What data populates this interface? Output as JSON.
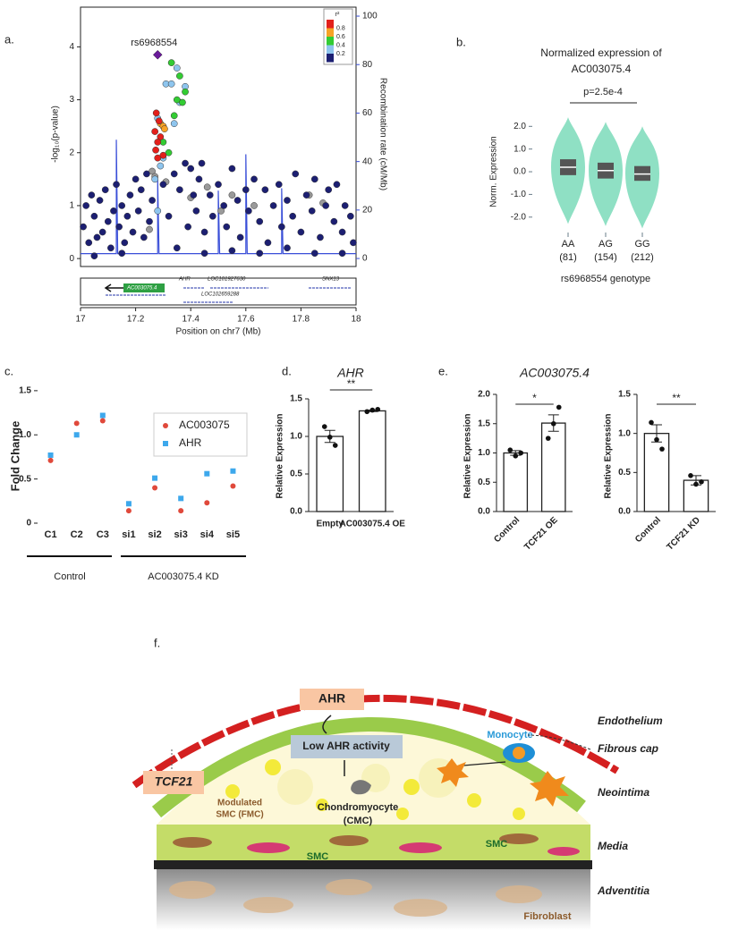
{
  "chart_data": [
    {
      "type": "scatter",
      "panel": "a.",
      "ylabel": "-log₁₀(p-value)",
      "y2label": "Recombination rate (cM/Mb)",
      "xlabel": "Position on chr7 (Mb)",
      "annotation": "rs6968554",
      "xlim": [
        17,
        18
      ],
      "xticks": [
        17,
        17.2,
        17.4,
        17.6,
        17.8,
        18
      ],
      "ylim": [
        -0.15,
        4.75
      ],
      "yticks": [
        0,
        1,
        2,
        3,
        4
      ],
      "y2lim": [
        -3.3,
        103.7
      ],
      "y2ticks": [
        0,
        20,
        40,
        60,
        80,
        100
      ],
      "y2color": "#3a4fd8",
      "legend": {
        "title": "r²",
        "labels": [
          0.8,
          0.6,
          0.4,
          0.2
        ]
      },
      "genes": [
        "AC003075.4",
        "AHR",
        "LOC101927630",
        "LOC102659288",
        "SNX13"
      ],
      "series": [
        {
          "color": "#6a1b9a",
          "marker": "diamond",
          "x": [
            17.28
          ],
          "y": [
            3.85
          ]
        },
        {
          "color": "#e3201b",
          "x": [
            17.275,
            17.285,
            17.27,
            17.29,
            17.28,
            17.273,
            17.3,
            17.28
          ],
          "y": [
            2.75,
            2.6,
            2.4,
            2.3,
            2.2,
            2.05,
            1.95,
            1.9
          ]
        },
        {
          "color": "#f7a326",
          "x": [
            17.29,
            17.3,
            17.305
          ],
          "y": [
            2.55,
            2.5,
            2.45
          ]
        },
        {
          "color": "#33cc33",
          "x": [
            17.33,
            17.36,
            17.38,
            17.35,
            17.37,
            17.34,
            17.3,
            17.32
          ],
          "y": [
            3.7,
            3.45,
            3.15,
            3.0,
            2.95,
            2.7,
            2.2,
            2.0
          ]
        },
        {
          "color": "#8ec5ee",
          "x": [
            17.35,
            17.38,
            17.31,
            17.28,
            17.3,
            17.33,
            17.29,
            17.27,
            17.3,
            17.36,
            17.34,
            17.28
          ],
          "y": [
            3.6,
            3.25,
            3.3,
            2.65,
            2.5,
            3.3,
            1.75,
            1.5,
            1.9,
            2.95,
            2.55,
            0.9
          ]
        },
        {
          "color": "#1c1f72",
          "x": [
            17.01,
            17.02,
            17.03,
            17.04,
            17.05,
            17.06,
            17.07,
            17.08,
            17.09,
            17.1,
            17.11,
            17.12,
            17.13,
            17.14,
            17.15,
            17.16,
            17.17,
            17.18,
            17.19,
            17.2,
            17.21,
            17.22,
            17.23,
            17.24,
            17.25,
            17.26,
            17.3,
            17.32,
            17.34,
            17.36,
            17.38,
            17.39,
            17.4,
            17.41,
            17.42,
            17.43,
            17.44,
            17.45,
            17.47,
            17.48,
            17.5,
            17.52,
            17.53,
            17.55,
            17.57,
            17.58,
            17.6,
            17.61,
            17.63,
            17.65,
            17.67,
            17.68,
            17.7,
            17.72,
            17.73,
            17.75,
            17.77,
            17.78,
            17.8,
            17.82,
            17.84,
            17.85,
            17.87,
            17.89,
            17.9,
            17.92,
            17.93,
            17.95,
            17.96,
            17.98,
            17.99,
            17.35,
            17.45,
            17.55,
            17.65,
            17.75,
            17.85,
            17.15,
            17.05,
            17.95
          ],
          "y": [
            0.6,
            1.0,
            0.3,
            1.2,
            0.8,
            0.4,
            1.1,
            0.5,
            1.3,
            0.7,
            0.2,
            0.9,
            1.4,
            0.6,
            1.0,
            0.3,
            0.8,
            1.2,
            0.5,
            1.5,
            0.9,
            1.3,
            0.4,
            1.6,
            0.7,
            1.1,
            1.4,
            0.8,
            1.6,
            1.3,
            1.8,
            0.6,
            1.7,
            1.2,
            0.9,
            1.5,
            1.8,
            0.5,
            1.2,
            0.8,
            1.4,
            1.0,
            0.6,
            1.7,
            1.1,
            0.4,
            1.3,
            0.9,
            1.5,
            0.7,
            1.3,
            0.3,
            1.0,
            1.4,
            0.6,
            1.1,
            0.8,
            1.6,
            0.5,
            1.2,
            0.9,
            1.5,
            0.4,
            1.0,
            1.3,
            0.7,
            1.4,
            0.5,
            1.0,
            0.8,
            0.3,
            0.2,
            0.1,
            0.15,
            0.1,
            0.2,
            0.1,
            0.1,
            0.05,
            0.1
          ]
        },
        {
          "color": "#9a9a9a",
          "x": [
            17.26,
            17.27,
            17.31,
            17.4,
            17.55,
            17.63,
            17.46,
            17.83,
            17.88,
            17.25,
            17.51
          ],
          "y": [
            1.65,
            1.55,
            1.45,
            1.15,
            1.2,
            1.0,
            1.35,
            1.2,
            1.05,
            0.55,
            0.9
          ]
        }
      ],
      "recombination": {
        "x": [
          17,
          17.13,
          17.13,
          17.135,
          17.28,
          17.28,
          17.285,
          17.5,
          17.5,
          17.505,
          17.6,
          17.6,
          17.605,
          17.73,
          17.73,
          17.735,
          18
        ],
        "y2": [
          2,
          2,
          49,
          2,
          2,
          33,
          2,
          2,
          28,
          2,
          2,
          43,
          2,
          2,
          29,
          2,
          2
        ]
      }
    },
    {
      "type": "violin",
      "panel": "b.",
      "title": [
        "Normalized expression of",
        "AC003075.4"
      ],
      "annotation": "p=2.5e-4",
      "ylabel": "Norm. Expression",
      "xlabel": "rs6968554 genotype",
      "color": "#8fe0c4",
      "categories": [
        "AA",
        "AG",
        "GG"
      ],
      "count_labels": [
        "(81)",
        "(154)",
        "(212)"
      ],
      "medians": [
        0.2,
        0.05,
        -0.1
      ],
      "q1": [
        -0.15,
        -0.3,
        -0.4
      ],
      "q3": [
        0.55,
        0.4,
        0.25
      ],
      "mins": [
        -2.3,
        -2.4,
        -2.5
      ],
      "maxs": [
        2.4,
        2.2,
        2.0
      ],
      "ylim": [
        -2.6,
        2.8
      ],
      "yticks": [
        {
          "value": 2,
          "label": "2.0"
        },
        {
          "value": 1,
          "label": "1.0"
        },
        {
          "value": 0,
          "label": "0.0"
        },
        {
          "value": -1,
          "label": "-1.0"
        },
        {
          "value": -2,
          "label": "-2.0"
        }
      ]
    },
    {
      "type": "dot",
      "panel": "c.",
      "ylabel": "Fold Change",
      "categories": [
        "C1",
        "C2",
        "C3",
        "si1",
        "si2",
        "si3",
        "si4",
        "si5"
      ],
      "groups": [
        "Control",
        "AC003075.4 KD"
      ],
      "series": [
        {
          "name": "AC003075",
          "color": "#e0493b",
          "values": [
            0.71,
            1.13,
            1.16,
            0.14,
            0.4,
            0.14,
            0.23,
            0.42
          ]
        },
        {
          "name": "AHR",
          "color": "#3da8ec",
          "values": [
            0.77,
            1.0,
            1.22,
            0.22,
            0.51,
            0.28,
            0.56,
            0.59
          ]
        }
      ],
      "ylim": [
        0,
        1.6
      ],
      "yticks": [
        0,
        0.5,
        {
          "value": 1,
          "label": "1.0"
        },
        1.5
      ]
    },
    {
      "type": "bar",
      "panel": "d.",
      "title": "AHR",
      "ylabel": "Relative Expression",
      "annotation": "**",
      "categories": [
        "Empty",
        "AC003075.4 OE"
      ],
      "values": [
        1.0,
        1.34
      ],
      "errors": [
        0.08,
        0.01
      ],
      "points": [
        [
          1.13,
          0.99,
          0.88
        ],
        [
          1.33,
          1.35,
          1.36
        ]
      ],
      "ylim": [
        0,
        1.5
      ],
      "yticks": [
        {
          "value": 0,
          "label": "0.0"
        },
        0.5,
        {
          "value": 1,
          "label": "1.0"
        },
        1.5
      ]
    },
    {
      "type": "bar",
      "panel": "e.",
      "title": "AC003075.4",
      "ylabel": "Relative Expression",
      "annotation": "*",
      "categories": [
        "Control",
        "TCF21 OE"
      ],
      "values": [
        1.0,
        1.51
      ],
      "errors": [
        0.04,
        0.14
      ],
      "points": [
        [
          1.05,
          0.95,
          1.0
        ],
        [
          1.25,
          1.5,
          1.78
        ]
      ],
      "ylim": [
        0,
        2
      ],
      "yticks": [
        {
          "value": 0,
          "label": "0.0"
        },
        0.5,
        {
          "value": 1,
          "label": "1.0"
        },
        1.5,
        {
          "value": 2,
          "label": "2.0"
        }
      ]
    },
    {
      "type": "bar",
      "ylabel": "Relative Expression",
      "annotation": "**",
      "categories": [
        "Control",
        "TCF21 KD"
      ],
      "values": [
        1.0,
        0.4
      ],
      "errors": [
        0.11,
        0.06
      ],
      "points": [
        [
          1.14,
          0.92,
          0.8
        ],
        [
          0.46,
          0.35,
          0.38
        ]
      ],
      "ylim": [
        0,
        1.5
      ],
      "yticks": [
        {
          "value": 0,
          "label": "0.0"
        },
        0.5,
        {
          "value": 1,
          "label": "1.0"
        },
        1.5
      ]
    }
  ],
  "diagram": {
    "panel": "f.",
    "ahr": "AHR",
    "monocyte": "Monocyte",
    "low_ahr": "Low AHR activity",
    "cmc": [
      "Chondromyocyte",
      "(CMC)"
    ],
    "tcf21": "TCF21",
    "fmc": [
      "Modulated",
      "SMC (FMC)"
    ],
    "smc": [
      "SMC",
      "SMC"
    ],
    "fibroblast": "Fibroblast",
    "layers": [
      "Endothelium",
      "Fibrous cap",
      "Neointima",
      "Media",
      "Adventitia"
    ]
  }
}
